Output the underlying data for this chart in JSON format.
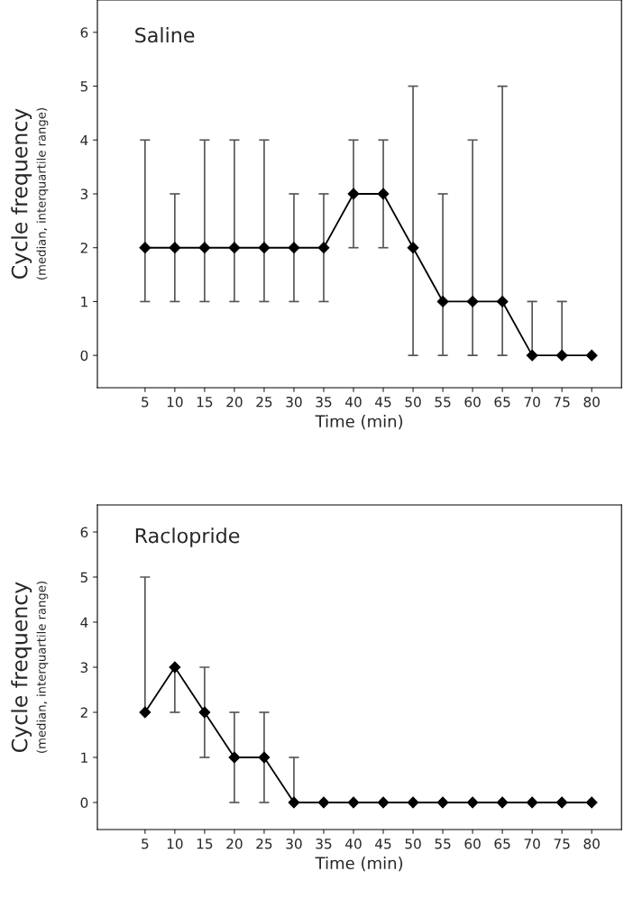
{
  "chart_data": [
    {
      "type": "line",
      "title": "Saline",
      "xlabel": "Time (min)",
      "ylabel": "Cycle frequency\n(median, interquartile range)",
      "x": [
        5,
        10,
        15,
        20,
        25,
        30,
        35,
        40,
        45,
        50,
        55,
        60,
        65,
        70,
        75,
        80
      ],
      "series": [
        {
          "color": "#000000",
          "values": [
            2,
            2,
            2,
            2,
            2,
            2,
            2,
            3,
            3,
            2,
            1,
            1,
            1,
            0,
            0,
            0
          ],
          "errors": [
            [
              1,
              4
            ],
            [
              1,
              3
            ],
            [
              1,
              4
            ],
            [
              1,
              4
            ],
            [
              1,
              4
            ],
            [
              1,
              3
            ],
            [
              1,
              3
            ],
            [
              2,
              4
            ],
            [
              2,
              4
            ],
            [
              0,
              5
            ],
            [
              0,
              3
            ],
            [
              0,
              4
            ],
            [
              0,
              5
            ],
            [
              0,
              1
            ],
            [
              0,
              1
            ],
            null
          ]
        }
      ],
      "xlim": [
        -3,
        85
      ],
      "ylim": [
        -0.6,
        6.6
      ],
      "xticks": [
        5,
        10,
        15,
        20,
        25,
        30,
        35,
        40,
        45,
        50,
        55,
        60,
        65,
        70,
        75,
        80
      ],
      "yticks": [
        0,
        1,
        2,
        3,
        4,
        5,
        6
      ],
      "marker": "diamond",
      "line_style": "solid",
      "grid": false,
      "legend": false
    },
    {
      "type": "line",
      "title": "Raclopride",
      "xlabel": "Time (min)",
      "ylabel": "Cycle frequency\n(median, interquartile range)",
      "x": [
        5,
        10,
        15,
        20,
        25,
        30,
        35,
        40,
        45,
        50,
        55,
        60,
        65,
        70,
        75,
        80
      ],
      "series": [
        {
          "color": "#000000",
          "values": [
            2,
            3,
            2,
            1,
            1,
            0,
            0,
            0,
            0,
            0,
            0,
            0,
            0,
            0,
            0,
            0
          ],
          "errors": [
            [
              2,
              5
            ],
            [
              2,
              3
            ],
            [
              1,
              3
            ],
            [
              0,
              2
            ],
            [
              0,
              2
            ],
            [
              0,
              1
            ],
            null,
            null,
            null,
            null,
            null,
            null,
            null,
            null,
            null,
            null
          ]
        }
      ],
      "xlim": [
        -3,
        85
      ],
      "ylim": [
        -0.6,
        6.6
      ],
      "xticks": [
        5,
        10,
        15,
        20,
        25,
        30,
        35,
        40,
        45,
        50,
        55,
        60,
        65,
        70,
        75,
        80
      ],
      "yticks": [
        0,
        1,
        2,
        3,
        4,
        5,
        6
      ],
      "marker": "diamond",
      "line_style": "solid",
      "grid": false,
      "legend": false
    }
  ]
}
